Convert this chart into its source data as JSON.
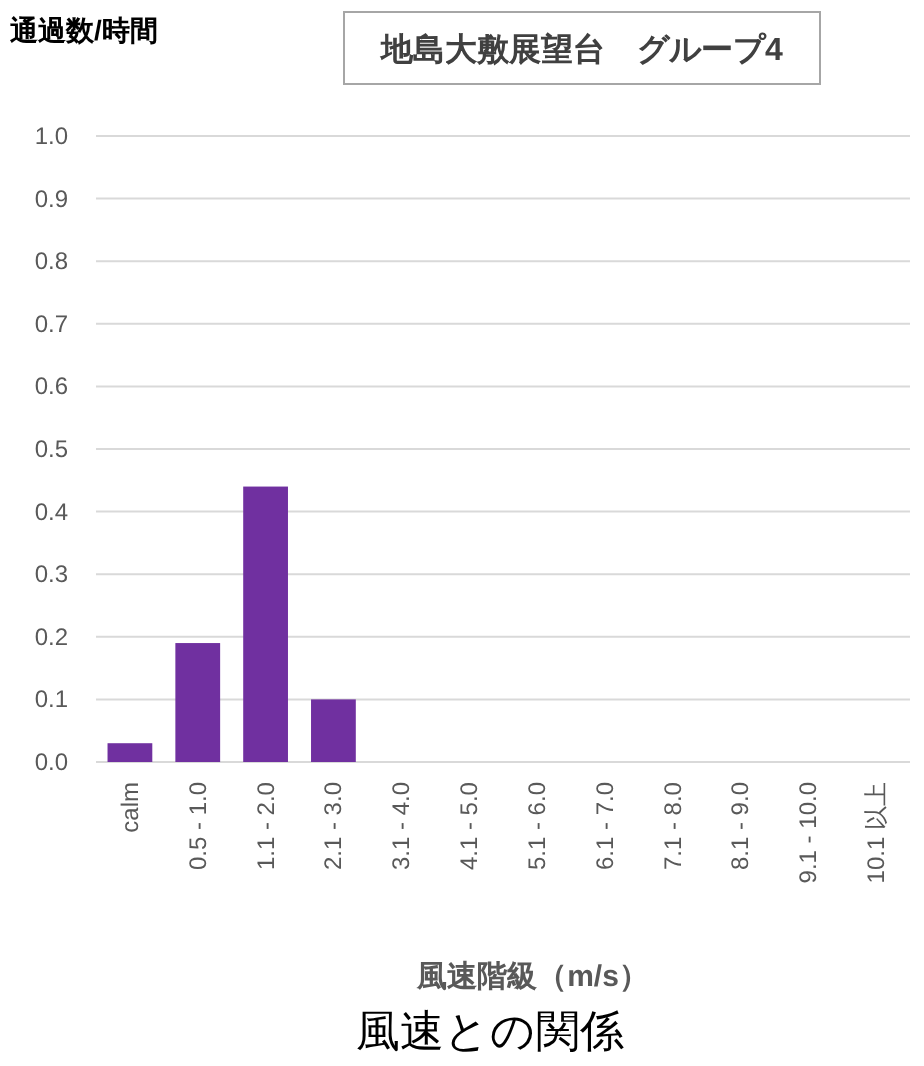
{
  "chart_data": {
    "type": "bar",
    "title": "風速との関係",
    "subtitle": "地島大敷展望台　グループ4",
    "ylabel": "通過数/時間",
    "xlabel": "風速階級（m/s）",
    "categories": [
      "calm",
      "0.5 - 1.0",
      "1.1 - 2.0",
      "2.1 - 3.0",
      "3.1 - 4.0",
      "4.1 - 5.0",
      "5.1 - 6.0",
      "6.1 - 7.0",
      "7.1 - 8.0",
      "8.1 - 9.0",
      "9.1 - 10.0",
      "10.1 以上"
    ],
    "values": [
      0.03,
      0.19,
      0.44,
      0.1,
      0,
      0,
      0,
      0,
      0,
      0,
      0,
      0
    ],
    "color": "#7030a0",
    "ylim": [
      0,
      1
    ],
    "yticks": [
      {
        "value": 0,
        "label": "0.0"
      },
      0.1,
      0.2,
      0.3,
      0.4,
      0.5,
      0.6,
      0.7,
      0.8,
      0.9,
      {
        "value": 1,
        "label": "1.0"
      }
    ],
    "grid": "y"
  }
}
